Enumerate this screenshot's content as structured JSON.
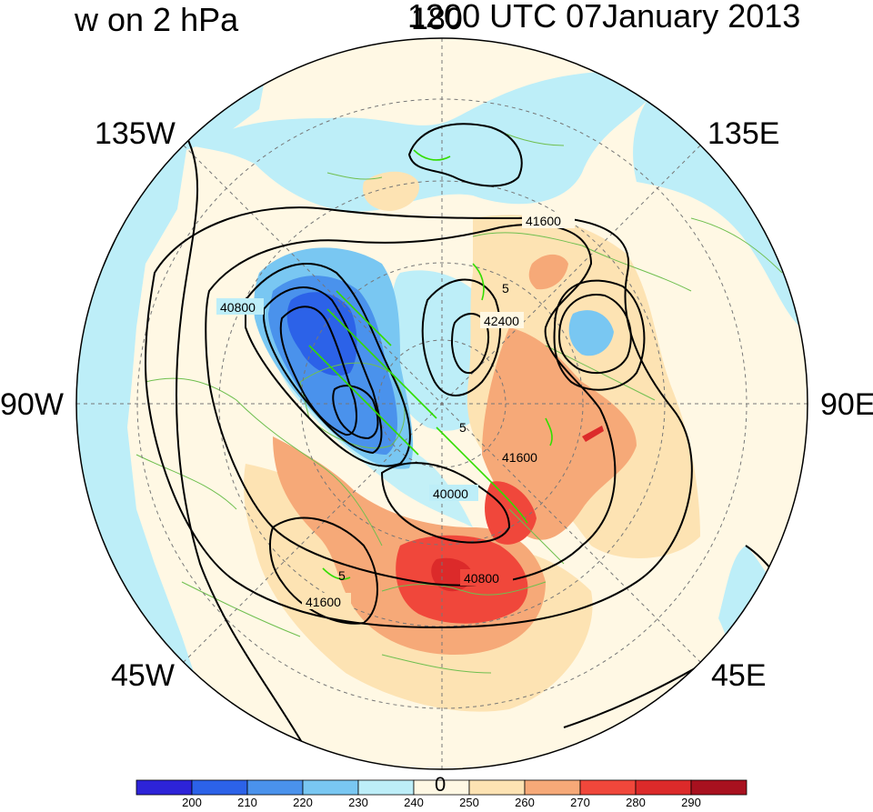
{
  "header": {
    "title_left": "w on 2 hPa",
    "title_right": "1200 UTC 07January 2013"
  },
  "map": {
    "projection": "north polar stereographic",
    "longitude_labels": {
      "top": "180",
      "top_left": "135W",
      "top_right": "135E",
      "left": "90W",
      "right": "90E",
      "bottom_left": "45W",
      "bottom_right": "45E",
      "bottom": "0"
    },
    "contour_labels": [
      "40800",
      "42400",
      "41600",
      "41600",
      "40000",
      "40800",
      "41600"
    ],
    "green_contour_labels": [
      "5",
      "5",
      "5"
    ],
    "colors": {
      "ocean": "#bdeef8",
      "land_fill": "#fff8e4",
      "coastline": "#6fbf4f",
      "contour_black": "#000000",
      "contour_green": "#33dd00"
    }
  },
  "colorbar": {
    "colors": [
      "#2d23d8",
      "#2c62e8",
      "#4a92ec",
      "#79c7f2",
      "#bdeef8",
      "#fff8e4",
      "#fde3b3",
      "#f6a978",
      "#f0473b",
      "#dc2a2a",
      "#a8111f"
    ],
    "tick_labels": [
      "200",
      "210",
      "220",
      "230",
      "240",
      "250",
      "260",
      "270",
      "280",
      "290"
    ]
  }
}
